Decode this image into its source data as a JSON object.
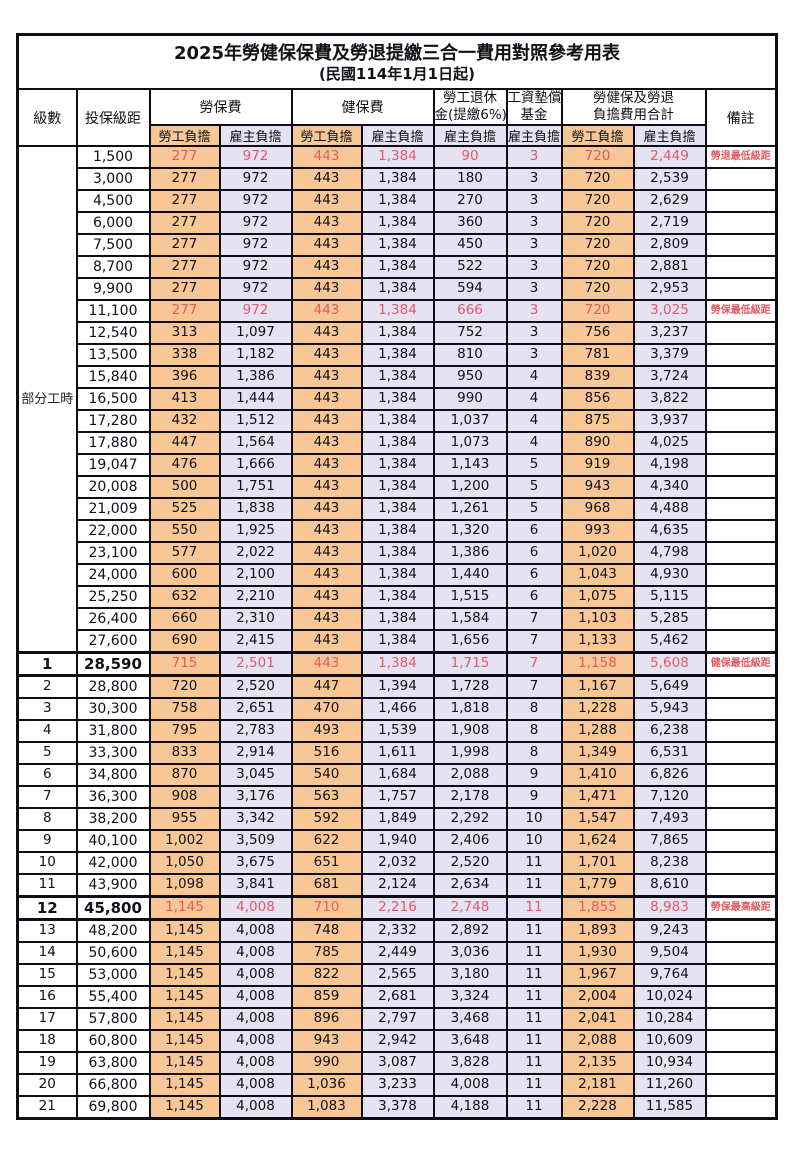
{
  "title": "2025年勞健保保費及勞退提繳三合一費用對照參考用表",
  "subtitle": "(民國114年1月1日起)",
  "part_time_label": "部分工時",
  "header": {
    "level": "級數",
    "bracket": "投保級距",
    "labor": "勞保費",
    "health": "健保費",
    "pension_line1": "勞工退休",
    "pension_line2": "金(提繳6%)",
    "fund_line1": "工資墊償",
    "fund_line2": "基金",
    "total_line1": "勞健保及勞退",
    "total_line2": "負擔費用合計",
    "remark": "備註",
    "employee": "勞工負擔",
    "employer": "雇主負擔"
  },
  "colors": {
    "employee_bg": "#F9C795",
    "employer_bg": "#E4E2F3",
    "highlight_red": "#E25A64",
    "border": "#0e0e16"
  },
  "rows": [
    {
      "lv": "",
      "br": "1,500",
      "le": "277",
      "lr": "972",
      "he": "443",
      "hr": "1,384",
      "pn": "90",
      "wf": "3",
      "te": "720",
      "ter": "2,449",
      "rm": "勞退最低級距",
      "red": true,
      "emph": false
    },
    {
      "lv": "",
      "br": "3,000",
      "le": "277",
      "lr": "972",
      "he": "443",
      "hr": "1,384",
      "pn": "180",
      "wf": "3",
      "te": "720",
      "ter": "2,539",
      "rm": "",
      "red": false,
      "emph": false
    },
    {
      "lv": "",
      "br": "4,500",
      "le": "277",
      "lr": "972",
      "he": "443",
      "hr": "1,384",
      "pn": "270",
      "wf": "3",
      "te": "720",
      "ter": "2,629",
      "rm": "",
      "red": false,
      "emph": false
    },
    {
      "lv": "",
      "br": "6,000",
      "le": "277",
      "lr": "972",
      "he": "443",
      "hr": "1,384",
      "pn": "360",
      "wf": "3",
      "te": "720",
      "ter": "2,719",
      "rm": "",
      "red": false,
      "emph": false
    },
    {
      "lv": "",
      "br": "7,500",
      "le": "277",
      "lr": "972",
      "he": "443",
      "hr": "1,384",
      "pn": "450",
      "wf": "3",
      "te": "720",
      "ter": "2,809",
      "rm": "",
      "red": false,
      "emph": false
    },
    {
      "lv": "",
      "br": "8,700",
      "le": "277",
      "lr": "972",
      "he": "443",
      "hr": "1,384",
      "pn": "522",
      "wf": "3",
      "te": "720",
      "ter": "2,881",
      "rm": "",
      "red": false,
      "emph": false
    },
    {
      "lv": "",
      "br": "9,900",
      "le": "277",
      "lr": "972",
      "he": "443",
      "hr": "1,384",
      "pn": "594",
      "wf": "3",
      "te": "720",
      "ter": "2,953",
      "rm": "",
      "red": false,
      "emph": false
    },
    {
      "lv": "",
      "br": "11,100",
      "le": "277",
      "lr": "972",
      "he": "443",
      "hr": "1,384",
      "pn": "666",
      "wf": "3",
      "te": "720",
      "ter": "3,025",
      "rm": "勞保最低級距",
      "red": true,
      "emph": false
    },
    {
      "lv": "",
      "br": "12,540",
      "le": "313",
      "lr": "1,097",
      "he": "443",
      "hr": "1,384",
      "pn": "752",
      "wf": "3",
      "te": "756",
      "ter": "3,237",
      "rm": "",
      "red": false,
      "emph": false
    },
    {
      "lv": "",
      "br": "13,500",
      "le": "338",
      "lr": "1,182",
      "he": "443",
      "hr": "1,384",
      "pn": "810",
      "wf": "3",
      "te": "781",
      "ter": "3,379",
      "rm": "",
      "red": false,
      "emph": false
    },
    {
      "lv": "",
      "br": "15,840",
      "le": "396",
      "lr": "1,386",
      "he": "443",
      "hr": "1,384",
      "pn": "950",
      "wf": "4",
      "te": "839",
      "ter": "3,724",
      "rm": "",
      "red": false,
      "emph": false
    },
    {
      "lv": "",
      "br": "16,500",
      "le": "413",
      "lr": "1,444",
      "he": "443",
      "hr": "1,384",
      "pn": "990",
      "wf": "4",
      "te": "856",
      "ter": "3,822",
      "rm": "",
      "red": false,
      "emph": false
    },
    {
      "lv": "",
      "br": "17,280",
      "le": "432",
      "lr": "1,512",
      "he": "443",
      "hr": "1,384",
      "pn": "1,037",
      "wf": "4",
      "te": "875",
      "ter": "3,937",
      "rm": "",
      "red": false,
      "emph": false
    },
    {
      "lv": "",
      "br": "17,880",
      "le": "447",
      "lr": "1,564",
      "he": "443",
      "hr": "1,384",
      "pn": "1,073",
      "wf": "4",
      "te": "890",
      "ter": "4,025",
      "rm": "",
      "red": false,
      "emph": false
    },
    {
      "lv": "",
      "br": "19,047",
      "le": "476",
      "lr": "1,666",
      "he": "443",
      "hr": "1,384",
      "pn": "1,143",
      "wf": "5",
      "te": "919",
      "ter": "4,198",
      "rm": "",
      "red": false,
      "emph": false
    },
    {
      "lv": "",
      "br": "20,008",
      "le": "500",
      "lr": "1,751",
      "he": "443",
      "hr": "1,384",
      "pn": "1,200",
      "wf": "5",
      "te": "943",
      "ter": "4,340",
      "rm": "",
      "red": false,
      "emph": false
    },
    {
      "lv": "",
      "br": "21,009",
      "le": "525",
      "lr": "1,838",
      "he": "443",
      "hr": "1,384",
      "pn": "1,261",
      "wf": "5",
      "te": "968",
      "ter": "4,488",
      "rm": "",
      "red": false,
      "emph": false
    },
    {
      "lv": "",
      "br": "22,000",
      "le": "550",
      "lr": "1,925",
      "he": "443",
      "hr": "1,384",
      "pn": "1,320",
      "wf": "6",
      "te": "993",
      "ter": "4,635",
      "rm": "",
      "red": false,
      "emph": false
    },
    {
      "lv": "",
      "br": "23,100",
      "le": "577",
      "lr": "2,022",
      "he": "443",
      "hr": "1,384",
      "pn": "1,386",
      "wf": "6",
      "te": "1,020",
      "ter": "4,798",
      "rm": "",
      "red": false,
      "emph": false
    },
    {
      "lv": "",
      "br": "24,000",
      "le": "600",
      "lr": "2,100",
      "he": "443",
      "hr": "1,384",
      "pn": "1,440",
      "wf": "6",
      "te": "1,043",
      "ter": "4,930",
      "rm": "",
      "red": false,
      "emph": false
    },
    {
      "lv": "",
      "br": "25,250",
      "le": "632",
      "lr": "2,210",
      "he": "443",
      "hr": "1,384",
      "pn": "1,515",
      "wf": "6",
      "te": "1,075",
      "ter": "5,115",
      "rm": "",
      "red": false,
      "emph": false
    },
    {
      "lv": "",
      "br": "26,400",
      "le": "660",
      "lr": "2,310",
      "he": "443",
      "hr": "1,384",
      "pn": "1,584",
      "wf": "7",
      "te": "1,103",
      "ter": "5,285",
      "rm": "",
      "red": false,
      "emph": false
    },
    {
      "lv": "",
      "br": "27,600",
      "le": "690",
      "lr": "2,415",
      "he": "443",
      "hr": "1,384",
      "pn": "1,656",
      "wf": "7",
      "te": "1,133",
      "ter": "5,462",
      "rm": "",
      "red": false,
      "emph": false
    },
    {
      "lv": "1",
      "br": "28,590",
      "le": "715",
      "lr": "2,501",
      "he": "443",
      "hr": "1,384",
      "pn": "1,715",
      "wf": "7",
      "te": "1,158",
      "ter": "5,608",
      "rm": "健保最低級距",
      "red": true,
      "emph": true
    },
    {
      "lv": "2",
      "br": "28,800",
      "le": "720",
      "lr": "2,520",
      "he": "447",
      "hr": "1,394",
      "pn": "1,728",
      "wf": "7",
      "te": "1,167",
      "ter": "5,649",
      "rm": "",
      "red": false,
      "emph": false
    },
    {
      "lv": "3",
      "br": "30,300",
      "le": "758",
      "lr": "2,651",
      "he": "470",
      "hr": "1,466",
      "pn": "1,818",
      "wf": "8",
      "te": "1,228",
      "ter": "5,943",
      "rm": "",
      "red": false,
      "emph": false
    },
    {
      "lv": "4",
      "br": "31,800",
      "le": "795",
      "lr": "2,783",
      "he": "493",
      "hr": "1,539",
      "pn": "1,908",
      "wf": "8",
      "te": "1,288",
      "ter": "6,238",
      "rm": "",
      "red": false,
      "emph": false
    },
    {
      "lv": "5",
      "br": "33,300",
      "le": "833",
      "lr": "2,914",
      "he": "516",
      "hr": "1,611",
      "pn": "1,998",
      "wf": "8",
      "te": "1,349",
      "ter": "6,531",
      "rm": "",
      "red": false,
      "emph": false
    },
    {
      "lv": "6",
      "br": "34,800",
      "le": "870",
      "lr": "3,045",
      "he": "540",
      "hr": "1,684",
      "pn": "2,088",
      "wf": "9",
      "te": "1,410",
      "ter": "6,826",
      "rm": "",
      "red": false,
      "emph": false
    },
    {
      "lv": "7",
      "br": "36,300",
      "le": "908",
      "lr": "3,176",
      "he": "563",
      "hr": "1,757",
      "pn": "2,178",
      "wf": "9",
      "te": "1,471",
      "ter": "7,120",
      "rm": "",
      "red": false,
      "emph": false
    },
    {
      "lv": "8",
      "br": "38,200",
      "le": "955",
      "lr": "3,342",
      "he": "592",
      "hr": "1,849",
      "pn": "2,292",
      "wf": "10",
      "te": "1,547",
      "ter": "7,493",
      "rm": "",
      "red": false,
      "emph": false
    },
    {
      "lv": "9",
      "br": "40,100",
      "le": "1,002",
      "lr": "3,509",
      "he": "622",
      "hr": "1,940",
      "pn": "2,406",
      "wf": "10",
      "te": "1,624",
      "ter": "7,865",
      "rm": "",
      "red": false,
      "emph": false
    },
    {
      "lv": "10",
      "br": "42,000",
      "le": "1,050",
      "lr": "3,675",
      "he": "651",
      "hr": "2,032",
      "pn": "2,520",
      "wf": "11",
      "te": "1,701",
      "ter": "8,238",
      "rm": "",
      "red": false,
      "emph": false
    },
    {
      "lv": "11",
      "br": "43,900",
      "le": "1,098",
      "lr": "3,841",
      "he": "681",
      "hr": "2,124",
      "pn": "2,634",
      "wf": "11",
      "te": "1,779",
      "ter": "8,610",
      "rm": "",
      "red": false,
      "emph": false
    },
    {
      "lv": "12",
      "br": "45,800",
      "le": "1,145",
      "lr": "4,008",
      "he": "710",
      "hr": "2,216",
      "pn": "2,748",
      "wf": "11",
      "te": "1,855",
      "ter": "8,983",
      "rm": "勞保最高級距",
      "red": true,
      "emph": true
    },
    {
      "lv": "13",
      "br": "48,200",
      "le": "1,145",
      "lr": "4,008",
      "he": "748",
      "hr": "2,332",
      "pn": "2,892",
      "wf": "11",
      "te": "1,893",
      "ter": "9,243",
      "rm": "",
      "red": false,
      "emph": false
    },
    {
      "lv": "14",
      "br": "50,600",
      "le": "1,145",
      "lr": "4,008",
      "he": "785",
      "hr": "2,449",
      "pn": "3,036",
      "wf": "11",
      "te": "1,930",
      "ter": "9,504",
      "rm": "",
      "red": false,
      "emph": false
    },
    {
      "lv": "15",
      "br": "53,000",
      "le": "1,145",
      "lr": "4,008",
      "he": "822",
      "hr": "2,565",
      "pn": "3,180",
      "wf": "11",
      "te": "1,967",
      "ter": "9,764",
      "rm": "",
      "red": false,
      "emph": false
    },
    {
      "lv": "16",
      "br": "55,400",
      "le": "1,145",
      "lr": "4,008",
      "he": "859",
      "hr": "2,681",
      "pn": "3,324",
      "wf": "11",
      "te": "2,004",
      "ter": "10,024",
      "rm": "",
      "red": false,
      "emph": false
    },
    {
      "lv": "17",
      "br": "57,800",
      "le": "1,145",
      "lr": "4,008",
      "he": "896",
      "hr": "2,797",
      "pn": "3,468",
      "wf": "11",
      "te": "2,041",
      "ter": "10,284",
      "rm": "",
      "red": false,
      "emph": false
    },
    {
      "lv": "18",
      "br": "60,800",
      "le": "1,145",
      "lr": "4,008",
      "he": "943",
      "hr": "2,942",
      "pn": "3,648",
      "wf": "11",
      "te": "2,088",
      "ter": "10,609",
      "rm": "",
      "red": false,
      "emph": false
    },
    {
      "lv": "19",
      "br": "63,800",
      "le": "1,145",
      "lr": "4,008",
      "he": "990",
      "hr": "3,087",
      "pn": "3,828",
      "wf": "11",
      "te": "2,135",
      "ter": "10,934",
      "rm": "",
      "red": false,
      "emph": false
    },
    {
      "lv": "20",
      "br": "66,800",
      "le": "1,145",
      "lr": "4,008",
      "he": "1,036",
      "hr": "3,233",
      "pn": "4,008",
      "wf": "11",
      "te": "2,181",
      "ter": "11,260",
      "rm": "",
      "red": false,
      "emph": false
    },
    {
      "lv": "21",
      "br": "69,800",
      "le": "1,145",
      "lr": "4,008",
      "he": "1,083",
      "hr": "3,378",
      "pn": "4,188",
      "wf": "11",
      "te": "2,228",
      "ter": "11,585",
      "rm": "",
      "red": false,
      "emph": false
    }
  ]
}
